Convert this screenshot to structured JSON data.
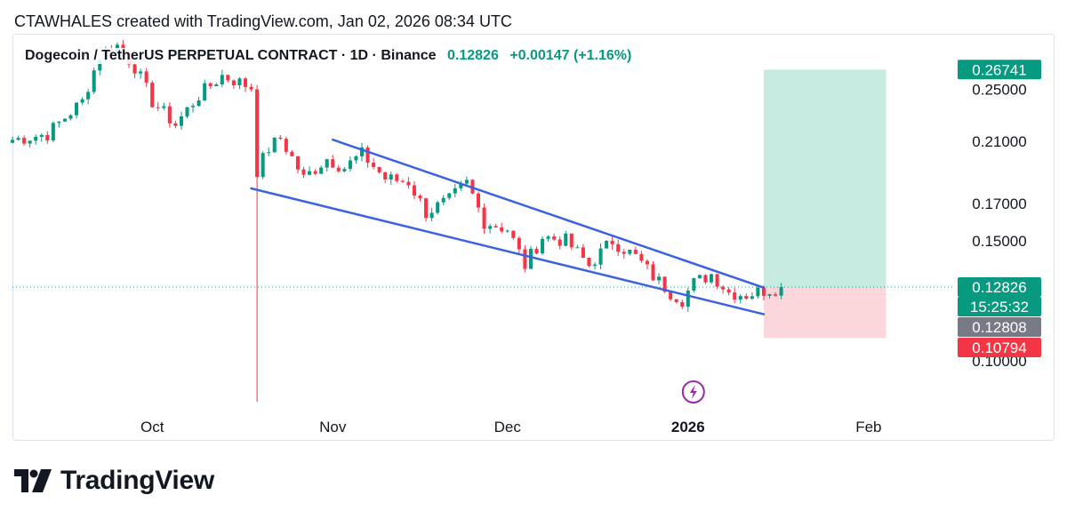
{
  "header": {
    "text": "CTAWHALES created with TradingView.com, Jan 02, 2026 08:34 UTC"
  },
  "legend": {
    "symbol": "Dogecoin / TetherUS PERPETUAL CONTRACT · 1D · Binance",
    "price": "0.12826",
    "change": "+0.00147 (+1.16%)"
  },
  "brand": {
    "name": "TradingView",
    "logo_icon": "tradingview-logo-icon"
  },
  "colors": {
    "up": "#089981",
    "down": "#f23645",
    "trendline": "#3b63e0",
    "target_zone": "#c8ebe1",
    "stop_zone": "#fbd7dc",
    "target_tag": "#089981",
    "stop_tag": "#f23645",
    "entry_tag": "#787b86",
    "price_line": "#089981",
    "event_icon": "#9c27b0"
  },
  "chart_data": {
    "type": "candlestick",
    "title": "Dogecoin / TetherUS PERPETUAL CONTRACT · 1D · Binance",
    "y_scale": "log",
    "ylim": [
      0.085,
      0.3
    ],
    "x_range_days": [
      -116,
      44
    ],
    "y_ticks": [
      "0.25000",
      "0.21000",
      "0.17000",
      "0.15000",
      "0.10000"
    ],
    "x_ticks": [
      {
        "label": "Oct",
        "day": -92,
        "bold": false
      },
      {
        "label": "Nov",
        "day": -61,
        "bold": false
      },
      {
        "label": "Dec",
        "day": -31,
        "bold": false
      },
      {
        "label": "2026",
        "day": 0,
        "bold": true
      },
      {
        "label": "Feb",
        "day": 31,
        "bold": false
      }
    ],
    "anchors": [
      [
        -116,
        0.211
      ],
      [
        -110,
        0.215
      ],
      [
        -104,
        0.24
      ],
      [
        -101,
        0.28
      ],
      [
        -98,
        0.29
      ],
      [
        -95,
        0.27
      ],
      [
        -92,
        0.24
      ],
      [
        -88,
        0.222
      ],
      [
        -84,
        0.245
      ],
      [
        -80,
        0.262
      ],
      [
        -77,
        0.256
      ],
      [
        -75,
        0.252
      ],
      [
        -74,
        0.19
      ],
      [
        -72,
        0.205
      ],
      [
        -70,
        0.212
      ],
      [
        -66,
        0.185
      ],
      [
        -62,
        0.198
      ],
      [
        -59,
        0.192
      ],
      [
        -56,
        0.201
      ],
      [
        -52,
        0.185
      ],
      [
        -48,
        0.183
      ],
      [
        -45,
        0.165
      ],
      [
        -41,
        0.172
      ],
      [
        -38,
        0.182
      ],
      [
        -35,
        0.16
      ],
      [
        -31,
        0.156
      ],
      [
        -28,
        0.138
      ],
      [
        -25,
        0.152
      ],
      [
        -21,
        0.15
      ],
      [
        -17,
        0.138
      ],
      [
        -13,
        0.15
      ],
      [
        -9,
        0.142
      ],
      [
        -6,
        0.133
      ],
      [
        -3,
        0.126
      ],
      [
        -1,
        0.123
      ],
      [
        1,
        0.13
      ],
      [
        4,
        0.134
      ],
      [
        7,
        0.126
      ],
      [
        10,
        0.125
      ],
      [
        13,
        0.1268
      ],
      [
        16,
        0.12826
      ]
    ],
    "spikes": [
      {
        "day": -74,
        "low": 0.087,
        "high": 0.205
      }
    ],
    "trendlines": [
      {
        "name": "upper",
        "from": [
          -61,
          0.211
        ],
        "to": [
          13,
          0.128
        ]
      },
      {
        "name": "lower",
        "from": [
          -75,
          0.179
        ],
        "to": [
          13,
          0.117
        ]
      }
    ],
    "position": {
      "entry": 0.12808,
      "target": 0.26741,
      "stop": 0.10794,
      "day_start": 13,
      "day_end": 34
    },
    "last_price": 0.12826,
    "countdown": "15:25:32",
    "price_tags": [
      {
        "name": "target",
        "label": "0.26741",
        "value": 0.26741
      },
      {
        "name": "last-price",
        "label": "0.12826",
        "value": 0.12826
      },
      {
        "name": "countdown",
        "label": "15:25:32",
        "value": 0.12826
      },
      {
        "name": "entry",
        "label": "0.12808",
        "value": 0.12808
      },
      {
        "name": "stop",
        "label": "0.10794",
        "value": 0.10794
      }
    ],
    "event_marker": {
      "day": 0,
      "icon": "lightning-icon"
    }
  }
}
